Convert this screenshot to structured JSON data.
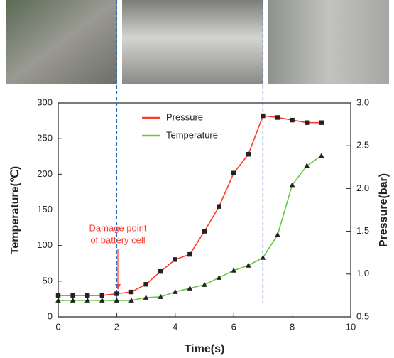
{
  "chart_data": {
    "type": "line",
    "x": [
      0,
      0.5,
      1,
      1.5,
      2,
      2.5,
      3,
      3.5,
      4,
      4.5,
      5,
      5.5,
      6,
      6.5,
      7,
      7.5,
      8,
      8.5,
      9
    ],
    "series": [
      {
        "name": "Pressure",
        "color": "#ff3b30",
        "marker": "square",
        "axis": "y2",
        "values": [
          0.75,
          0.75,
          0.75,
          0.75,
          0.77,
          0.79,
          0.88,
          1.03,
          1.17,
          1.23,
          1.5,
          1.79,
          2.18,
          2.4,
          2.85,
          2.83,
          2.8,
          2.77,
          2.77
        ]
      },
      {
        "name": "Temperature",
        "color": "#6cc644",
        "marker": "triangle",
        "values": [
          23,
          23,
          23,
          23,
          23,
          23,
          27,
          28,
          35,
          40,
          45,
          55,
          65,
          72,
          83,
          115,
          185,
          212,
          226
        ]
      }
    ],
    "xlabel": "Time(s)",
    "ylabel": "Temperature(℃)",
    "y2label": "Pressure(bar)",
    "xlim": [
      0,
      10
    ],
    "xticks": [
      0,
      2,
      4,
      6,
      8,
      10
    ],
    "ylim": [
      0,
      300
    ],
    "yticks": [
      0,
      50,
      100,
      150,
      200,
      250,
      300
    ],
    "y2lim": [
      0.5,
      3.0
    ],
    "y2ticks": [
      0.5,
      {
        "value": 1,
        "label": "1.0"
      },
      1.5,
      {
        "value": 2,
        "label": "2.0"
      },
      2.5,
      {
        "value": 3,
        "label": "3.0"
      }
    ],
    "vlines": [
      2,
      7
    ],
    "annotation": {
      "lines": [
        "Damage point",
        "of battery cell"
      ],
      "color": "#ff3b30"
    },
    "legend": "upper center"
  }
}
